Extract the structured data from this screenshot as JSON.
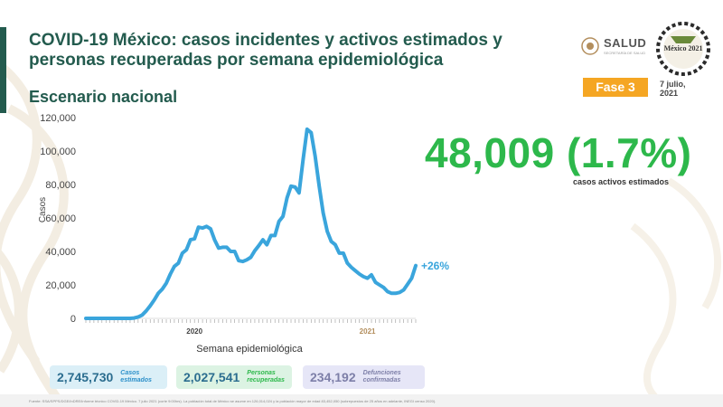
{
  "header": {
    "title": "COVID-19 México: casos incidentes y activos estimados y personas recuperadas por semana epidemiológica",
    "subtitle": "Escenario nacional",
    "logo_text": "SALUD",
    "logo_subtext": "SECRETARÍA DE SALUD",
    "anniv_text": "México 2021",
    "phase": "Fase 3",
    "date": "7 julio, 2021"
  },
  "highlight": {
    "value": "48,009 (1.7%)",
    "caption": "casos activos estimados",
    "color": "#2db84b"
  },
  "stats": [
    {
      "value": "2,745,730",
      "label": "Casos estimados"
    },
    {
      "value": "2,027,541",
      "label": "Personas recuperadas"
    },
    {
      "value": "234,192",
      "label": "Defunciones confirmadas"
    }
  ],
  "footer": "Fuente: SSA/SPPS/DGE/InDRE/Informe técnico COVID-19 México. 7 julio 2021 (corte 9:00hrs). La población total de México se asume en 126,014,024 y la población mayor de edad 83,452,050 (sobrepuestos de 25 años en adelante, INEGI censo 2020).",
  "chart_data": {
    "type": "line",
    "title": "",
    "xlabel": "Semana epidemiológica",
    "ylabel": "Casos",
    "ylim": [
      0,
      120000
    ],
    "yticks": [
      0,
      20000,
      40000,
      60000,
      80000,
      100000,
      120000
    ],
    "ytick_labels": [
      "0",
      "20,000",
      "40,000",
      "60,000",
      "80,000",
      "100,000",
      "120,000"
    ],
    "year_labels": [
      {
        "week_index": 27,
        "label": "2020"
      },
      {
        "week_index": 70,
        "label": "2021"
      }
    ],
    "annotation": "+26%",
    "line_color": "#3aa5dc",
    "series": [
      {
        "values": [
          0,
          0,
          0,
          0,
          0,
          0,
          0,
          0,
          0,
          0,
          0,
          0,
          200,
          800,
          2000,
          4500,
          7500,
          11000,
          15000,
          17500,
          21000,
          26500,
          31000,
          33000,
          39000,
          41000,
          47000,
          47500,
          54500,
          54000,
          55000,
          53500,
          47000,
          42000,
          42500,
          42500,
          40000,
          40000,
          34500,
          34000,
          35000,
          36500,
          40500,
          43500,
          47000,
          44000,
          49500,
          49500,
          58000,
          61000,
          72000,
          79000,
          78500,
          75000,
          95000,
          113000,
          111000,
          97000,
          79000,
          63000,
          52000,
          46000,
          44000,
          39000,
          39000,
          33000,
          30500,
          28500,
          26500,
          25000,
          24000,
          26000,
          21500,
          20000,
          18500,
          16000,
          15000,
          15000,
          15500,
          17000,
          20500,
          24000,
          31500
        ]
      }
    ]
  }
}
